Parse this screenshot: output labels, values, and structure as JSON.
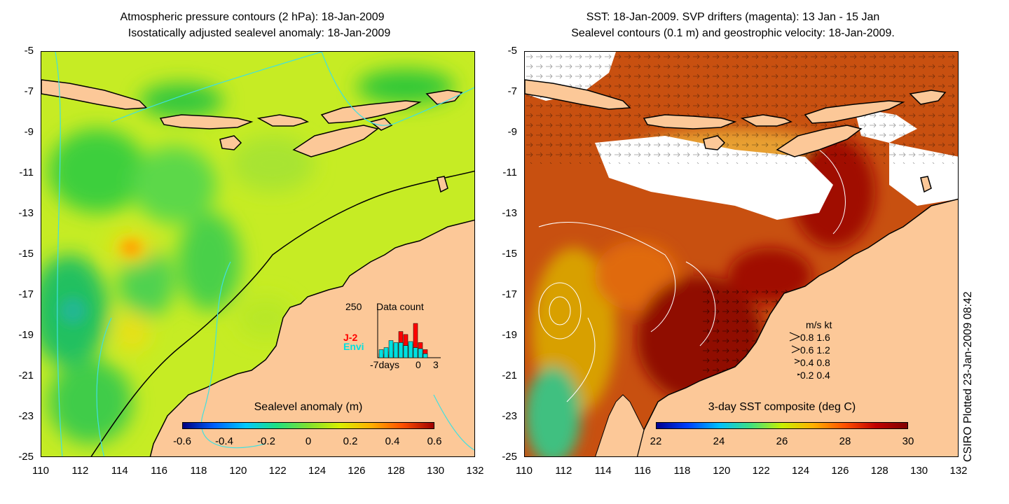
{
  "left_panel": {
    "title_line1": "Atmospheric pressure contours (2 hPa): 18-Jan-2009",
    "title_line2": "Isostatically adjusted sealevel anomaly: 18-Jan-2009",
    "colorbar_title": "Sealevel anomaly (m)",
    "colorbar_ticks": [
      "-0.6",
      "-0.4",
      "-0.2",
      "0",
      "0.2",
      "0.4",
      "0.6"
    ],
    "inset": {
      "title": "Data count",
      "ymax_label": "250",
      "series_j2": "J-2",
      "series_envi": "Envi",
      "x_start_label": "-7days",
      "x_zero_label": "0",
      "x_end_label": "3",
      "j2_values": [
        20,
        15,
        30,
        70,
        130,
        115,
        70,
        170,
        75,
        40
      ],
      "envi_values": [
        40,
        50,
        85,
        75,
        75,
        60,
        80,
        50,
        45,
        20
      ],
      "ymax": 250
    }
  },
  "right_panel": {
    "title_line1": "SST: 18-Jan-2009. SVP drifters (magenta): 13 Jan - 15 Jan",
    "title_line2": "Sealevel contours (0.1 m) and geostrophic velocity: 18-Jan-2009.",
    "colorbar_title": "3-day SST composite (deg C)",
    "colorbar_ticks": [
      "22",
      "24",
      "26",
      "28",
      "30"
    ],
    "legend_header": "m/s  kt",
    "legend_rows": [
      "0.8  1.6",
      "0.6  1.2",
      "0.4  0.8",
      "0.2  0.4"
    ]
  },
  "axes": {
    "lat_labels": [
      "-5",
      "-7",
      "-9",
      "-11",
      "-13",
      "-15",
      "-17",
      "-19",
      "-21",
      "-23",
      "-25"
    ],
    "lon_labels": [
      "110",
      "112",
      "114",
      "116",
      "118",
      "120",
      "122",
      "124",
      "126",
      "128",
      "130",
      "132"
    ]
  },
  "credit": "CSIRO Plotted 23-Jan-2009 08:42",
  "colors": {
    "land": "#fcc898",
    "sla_cmap": [
      "#000080",
      "#0060ff",
      "#00c8ff",
      "#20e080",
      "#80e030",
      "#d8f000",
      "#ffb000",
      "#ff5000",
      "#a00000"
    ],
    "sst_cmap": [
      "#000090",
      "#0040ff",
      "#00c0ff",
      "#40e080",
      "#c8f000",
      "#ffb000",
      "#ff5000",
      "#c00000",
      "#800000"
    ],
    "j2": "#ff0000",
    "envi": "#00e0e0"
  }
}
